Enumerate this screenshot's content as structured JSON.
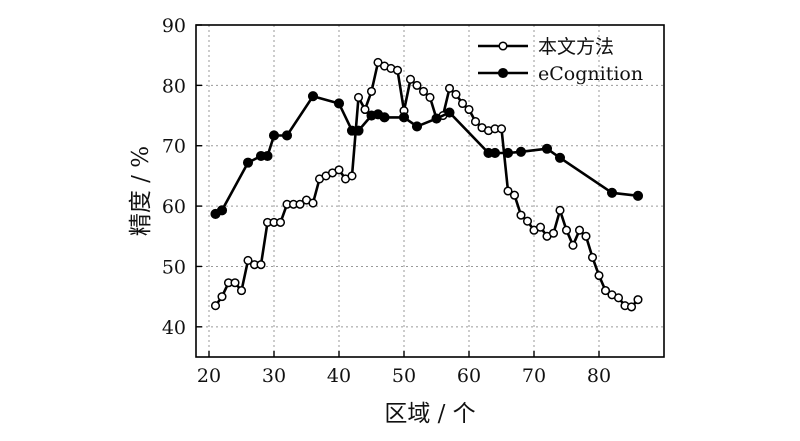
{
  "chart_data": {
    "type": "line",
    "title": "",
    "xlabel": "区域 / 个",
    "ylabel": "精度 / %",
    "xlim": [
      18,
      90
    ],
    "ylim": [
      35,
      90
    ],
    "x_ticks": [
      20,
      30,
      40,
      50,
      60,
      70,
      80
    ],
    "y_ticks": [
      40,
      50,
      60,
      70,
      80,
      90
    ],
    "x_tick_labels": [
      "20",
      "30",
      "40",
      "50",
      "60",
      "70",
      "80"
    ],
    "y_tick_labels": [
      "40",
      "50",
      "60",
      "70",
      "80",
      "90"
    ],
    "grid": true,
    "legend_position": "top-right",
    "series": [
      {
        "name": "本文方法",
        "marker": "open-circle",
        "x": [
          21,
          22,
          23,
          24,
          25,
          26,
          27,
          28,
          29,
          30,
          31,
          32,
          33,
          34,
          35,
          36,
          37,
          38,
          39,
          40,
          41,
          42,
          43,
          44,
          45,
          46,
          47,
          48,
          49,
          50,
          51,
          52,
          53,
          54,
          55,
          56,
          57,
          58,
          59,
          60,
          61,
          62,
          63,
          64,
          65,
          66,
          67,
          68,
          69,
          70,
          71,
          72,
          73,
          74,
          75,
          76,
          77,
          78,
          79,
          80,
          81,
          82,
          83,
          84,
          85,
          86
        ],
        "y": [
          43.5,
          45.0,
          47.3,
          47.3,
          46.0,
          51.0,
          50.3,
          50.3,
          57.3,
          57.3,
          57.3,
          60.3,
          60.3,
          60.3,
          61.0,
          60.5,
          64.5,
          65.0,
          65.5,
          66.0,
          64.5,
          65.0,
          78.0,
          76.0,
          79.0,
          83.8,
          83.2,
          82.8,
          82.5,
          75.8,
          81.0,
          80.0,
          79.0,
          78.0,
          74.5,
          75.0,
          79.5,
          78.5,
          77.0,
          76.0,
          74.0,
          73.0,
          72.5,
          72.8,
          72.8,
          62.5,
          61.8,
          58.5,
          57.5,
          56.0,
          56.5,
          55.0,
          55.5,
          59.3,
          56.0,
          53.5,
          56.0,
          55.0,
          51.5,
          48.5,
          46.0,
          45.3,
          44.8,
          43.5,
          43.3,
          44.5
        ]
      },
      {
        "name": "eCognition",
        "marker": "filled-circle",
        "x": [
          21,
          22,
          26,
          28,
          29,
          30,
          32,
          36,
          40,
          42,
          43,
          45,
          46,
          47,
          50,
          52,
          55,
          57,
          63,
          64,
          66,
          68,
          72,
          74,
          82,
          86
        ],
        "y": [
          58.7,
          59.3,
          67.2,
          68.3,
          68.3,
          71.7,
          71.7,
          78.2,
          77.0,
          72.5,
          72.5,
          75.0,
          75.2,
          74.7,
          74.7,
          73.2,
          74.5,
          75.5,
          68.8,
          68.8,
          68.8,
          69.0,
          69.5,
          68.0,
          62.2,
          61.7
        ]
      }
    ]
  }
}
